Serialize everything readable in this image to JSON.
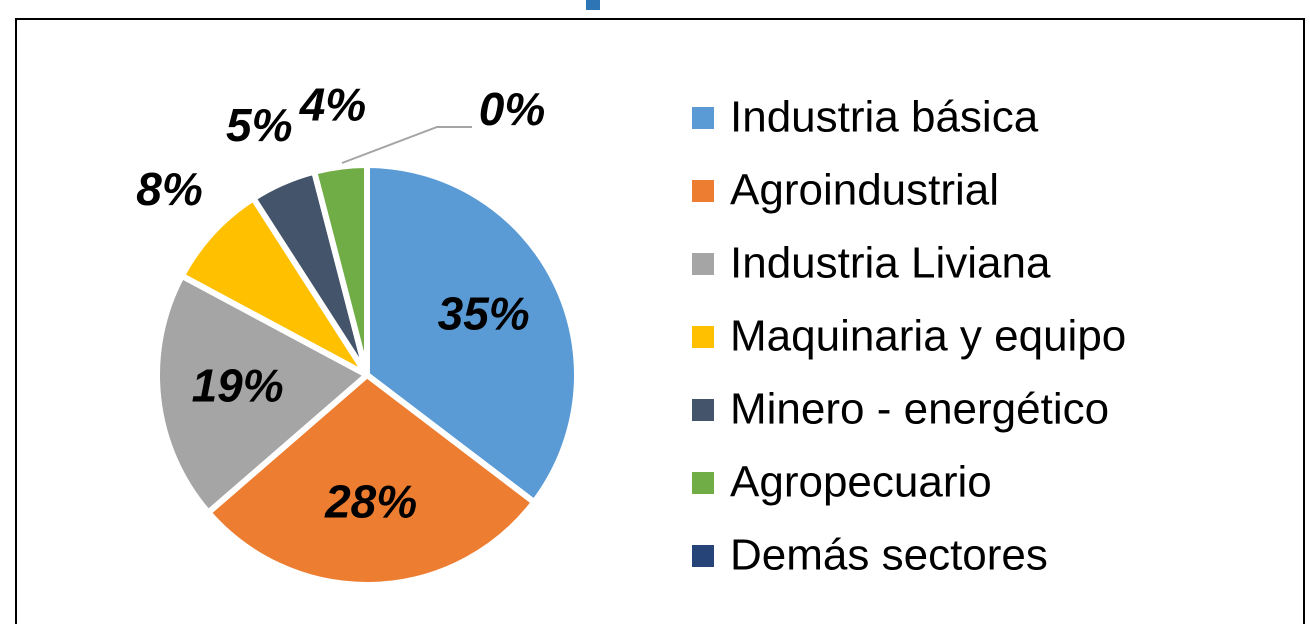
{
  "chart_data": {
    "type": "pie",
    "categories": [
      "Industria básica",
      "Agroindustrial",
      "Industria Liviana",
      "Maquinaria y equipo",
      "Minero - energético",
      "Agropecuario",
      "Demás sectores"
    ],
    "values": [
      35,
      28,
      19,
      8,
      5,
      4,
      0
    ],
    "value_labels": [
      "35%",
      "28%",
      "19%",
      "8%",
      "5%",
      "4%",
      "0%"
    ],
    "colors": [
      "#5b9bd5",
      "#ed7d31",
      "#a5a5a5",
      "#ffc000",
      "#44546a",
      "#70ad47",
      "#264478"
    ],
    "legend": "right"
  }
}
